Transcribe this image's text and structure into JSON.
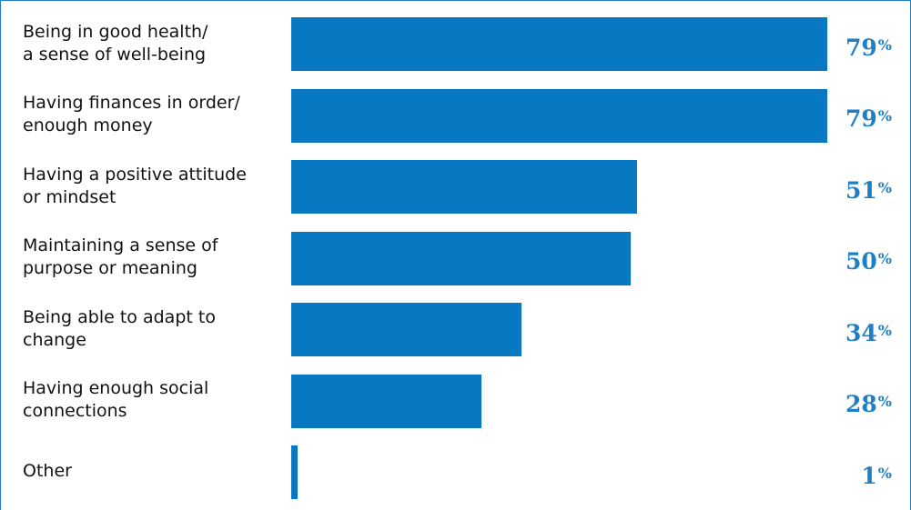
{
  "chart_data": {
    "type": "bar",
    "orientation": "horizontal",
    "categories": [
      "Being in good health/\na sense of well-being",
      "Having finances in order/\nenough money",
      "Having a positive attitude\nor mindset",
      "Maintaining a sense of\npurpose or meaning",
      "Being able to adapt to\nchange",
      "Having enough social\nconnections",
      "Other"
    ],
    "values": [
      79,
      79,
      51,
      50,
      34,
      28,
      1
    ],
    "value_unit": "%",
    "bar_color": "#0778c1",
    "label_color": "#1f7fc5",
    "xlim": [
      0,
      79
    ],
    "grid": false
  }
}
